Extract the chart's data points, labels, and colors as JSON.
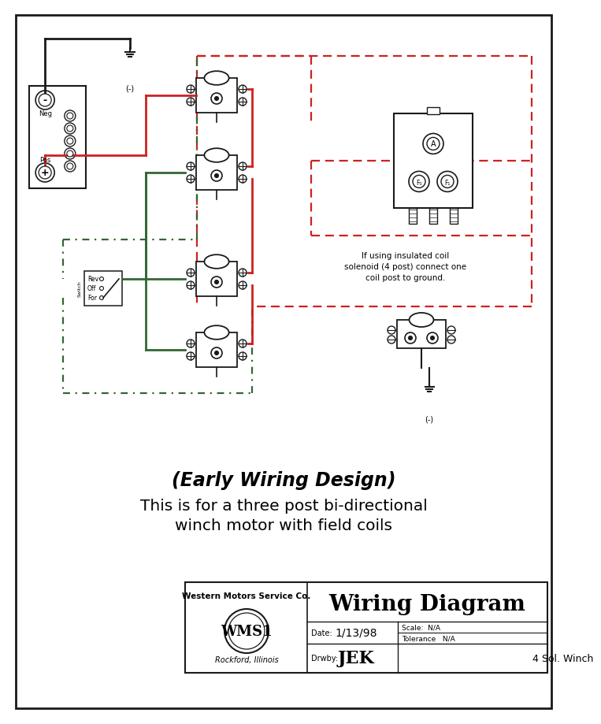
{
  "bg_color": "#ffffff",
  "line_color_black": "#1a1a1a",
  "line_color_red": "#cc2222",
  "line_color_green": "#336633",
  "title_italic": "(Early Wiring Design)",
  "title_normal_1": "This is for a three post bi-directional",
  "title_normal_2": "winch motor with field coils",
  "tb_company": "Western Motors Service Co.",
  "tb_logo": "WMS1",
  "tb_city": "Rockford, Illinois",
  "tb_diagram": "Wiring Diagram",
  "tb_date_label": "Date:",
  "tb_date": "1/13/98",
  "tb_scale_label": "Scale:  N/A",
  "tb_tol_label": "Tolerance   N/A",
  "tb_drwby_label": "Drwby:",
  "tb_drwby": "JEK",
  "tb_desc": "4 Sol. Winch",
  "note_line1": "If using insulated coil",
  "note_line2": "solenoid (4 post) connect one",
  "note_line3": "coil post to ground."
}
